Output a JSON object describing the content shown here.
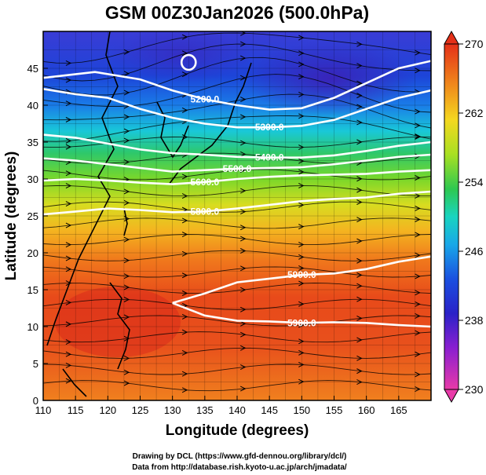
{
  "title": "GSM 00Z30Jan2026 (500.0hPa)",
  "xlabel": "Longitude (degrees)",
  "ylabel": "Latitude  (degrees)",
  "credits": [
    "Drawing by DCL (https://www.gfd-dennou.org/library/dcl/)",
    "Data from http://database.rish.kyoto-u.ac.jp/arch/jmadata/"
  ],
  "chart_data": {
    "type": "heatmap",
    "description_fields": "temperature shading with geopotential height contours and wind streamlines",
    "xlim": [
      110,
      170
    ],
    "ylim": [
      0,
      50
    ],
    "x_ticks": [
      110,
      115,
      120,
      125,
      130,
      135,
      140,
      145,
      150,
      155,
      160,
      165
    ],
    "y_ticks": [
      0,
      5,
      10,
      15,
      20,
      25,
      30,
      35,
      40,
      45
    ],
    "colorbar": {
      "min": 230,
      "max": 270,
      "ticks": [
        230,
        238,
        246,
        254,
        262,
        270
      ],
      "colors": [
        "#e83aa8",
        "#8a1fd0",
        "#1f22c8",
        "#1a7ce8",
        "#19d4d0",
        "#2ec850",
        "#a8e022",
        "#f4d820",
        "#f08a1c",
        "#e43018"
      ]
    },
    "contours": [
      {
        "label": "5200.0",
        "x": [
          110,
          118,
          125,
          130,
          135,
          140,
          145,
          150,
          155,
          160,
          165,
          170
        ],
        "y": [
          43.7,
          44.5,
          43.5,
          42.0,
          40.8,
          40.0,
          39.4,
          39.6,
          41.0,
          43.0,
          45.0,
          46.0
        ]
      },
      {
        "label": "5300.0",
        "x": [
          110,
          115,
          120,
          125,
          130,
          135,
          140,
          145,
          150,
          155,
          160,
          165,
          170
        ],
        "y": [
          42.2,
          41.5,
          41.0,
          39.5,
          38.3,
          37.5,
          37.0,
          37.0,
          37.2,
          38.0,
          39.5,
          41.0,
          42.0
        ]
      },
      {
        "label": "5400.0",
        "x": [
          110,
          115,
          120,
          125,
          130,
          135,
          140,
          145,
          150,
          155,
          160,
          165,
          170
        ],
        "y": [
          36.0,
          35.6,
          34.8,
          34.0,
          33.5,
          33.3,
          33.0,
          32.9,
          32.9,
          33.2,
          33.8,
          34.5,
          35.0
        ]
      },
      {
        "label": "5500.0",
        "x": [
          110,
          115,
          120,
          125,
          130,
          135,
          140,
          145,
          150,
          155,
          160,
          165,
          170
        ],
        "y": [
          32.8,
          32.5,
          32.0,
          31.5,
          31.0,
          31.2,
          31.4,
          31.5,
          31.6,
          32.0,
          32.5,
          33.0,
          33.3
        ]
      },
      {
        "label": "5600.0",
        "x": [
          110,
          115,
          120,
          125,
          130,
          135,
          140,
          145,
          150,
          155,
          160,
          165,
          170
        ],
        "y": [
          29.8,
          30.0,
          29.8,
          29.5,
          29.3,
          29.6,
          30.0,
          30.3,
          30.5,
          30.6,
          30.7,
          31.0,
          31.2
        ]
      },
      {
        "label": "5800.0",
        "x": [
          110,
          115,
          120,
          125,
          130,
          135,
          140,
          145,
          150,
          155,
          160,
          165,
          170
        ],
        "y": [
          25.2,
          25.6,
          26.0,
          25.8,
          25.5,
          25.6,
          26.0,
          26.5,
          27.0,
          27.3,
          27.5,
          28.0,
          28.3
        ]
      },
      {
        "label": "5900.0",
        "x": [
          130,
          135,
          140,
          145,
          150,
          155,
          160,
          165,
          170
        ],
        "y": [
          13.2,
          14.5,
          16.0,
          16.5,
          17.0,
          17.2,
          17.8,
          18.8,
          19.5
        ]
      },
      {
        "label": "5900.0",
        "x": [
          130,
          135,
          140,
          145,
          150,
          155,
          160,
          165,
          170
        ],
        "y": [
          13.2,
          11.5,
          10.8,
          10.7,
          10.5,
          10.6,
          10.5,
          10.2,
          10.0
        ]
      }
    ],
    "closed_contours": [
      {
        "center": [
          132.5,
          45.8
        ],
        "rx": 1.1,
        "ry": 1.0
      }
    ]
  }
}
